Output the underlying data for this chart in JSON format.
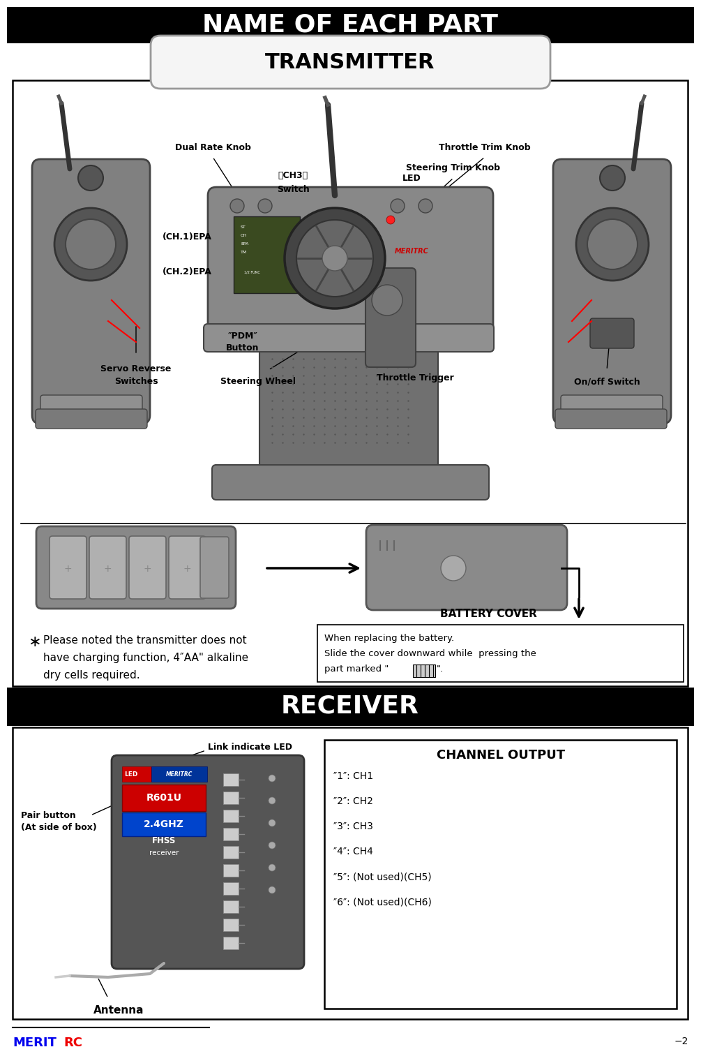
{
  "title": "NAME OF EACH PART",
  "subtitle": "TRANSMITTER",
  "receiver_title": "RECEIVER",
  "channel_output_title": "CHANNEL OUTPUT",
  "channel_outputs": [
    "‘1’: CH1",
    "‘2’: CH2",
    "‘3’: CH3",
    "‘4’: CH4",
    "‘5’: (Not used)(CH5)",
    "‘6’: (Not used)(CH6)"
  ],
  "battery_cover_label": "BATTERY COVER",
  "battery_instruction_line1": "When replacing the battery.",
  "battery_instruction_line2": "Slide the cover downward while  pressing the",
  "battery_instruction_line3": "part marked “        ”.",
  "meritrc_blue": "#0000EE",
  "meritrc_red": "#EE0000",
  "bg_color": "#FFFFFF",
  "header_bg": "#000000",
  "header_text": "#FFFFFF",
  "page_num": "−2",
  "gray1": "#888888",
  "gray2": "#606060",
  "gray3": "#444444",
  "gray_light": "#aaaaaa",
  "gray_mid": "#707070"
}
